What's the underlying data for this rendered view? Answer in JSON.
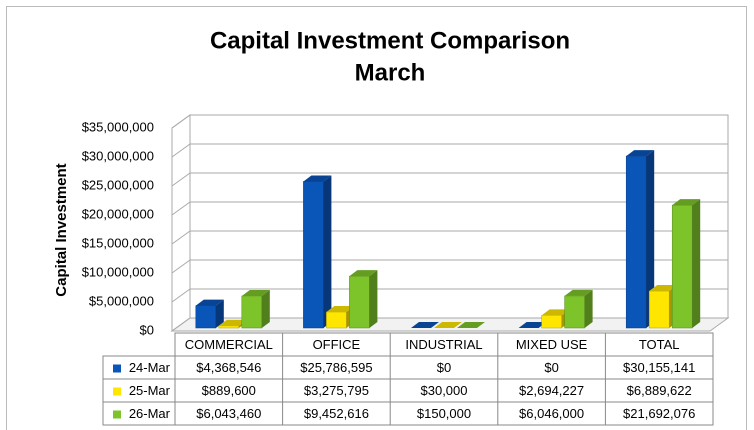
{
  "chart_data": {
    "type": "bar3d",
    "title": "Capital Investment Comparison",
    "subtitle": "March",
    "y_label": "Capital Investment",
    "categories": [
      "COMMERCIAL",
      "OFFICE",
      "INDUSTRIAL",
      "MIXED USE",
      "TOTAL"
    ],
    "series": [
      {
        "name": "24-Mar",
        "color": "#0a55b8",
        "values": [
          4368546,
          25786595,
          0,
          0,
          30155141
        ],
        "value_labels": [
          "$4,368,546",
          "$25,786,595",
          "$0",
          "$0",
          "$30,155,141"
        ]
      },
      {
        "name": "25-Mar",
        "color": "#ffe600",
        "values": [
          889600,
          3275795,
          30000,
          2694227,
          6889622
        ],
        "value_labels": [
          "$889,600",
          "$3,275,795",
          "$30,000",
          "$2,694,227",
          "$6,889,622"
        ]
      },
      {
        "name": "26-Mar",
        "color": "#7dc42a",
        "values": [
          6043460,
          9452616,
          150000,
          6046000,
          21692076
        ],
        "value_labels": [
          "$6,043,460",
          "$9,452,616",
          "$150,000",
          "$6,046,000",
          "$21,692,076"
        ]
      }
    ],
    "ylim": [
      0,
      35000000
    ],
    "yticks": [
      {
        "value": 0,
        "label": "$0"
      },
      {
        "value": 5000000,
        "label": "$5,000,000"
      },
      {
        "value": 10000000,
        "label": "$10,000,000"
      },
      {
        "value": 15000000,
        "label": "$15,000,000"
      },
      {
        "value": 20000000,
        "label": "$20,000,000"
      },
      {
        "value": 25000000,
        "label": "$25,000,000"
      },
      {
        "value": 30000000,
        "label": "$30,000,000"
      },
      {
        "value": 35000000,
        "label": "$35,000,000"
      }
    ],
    "grid": true
  }
}
